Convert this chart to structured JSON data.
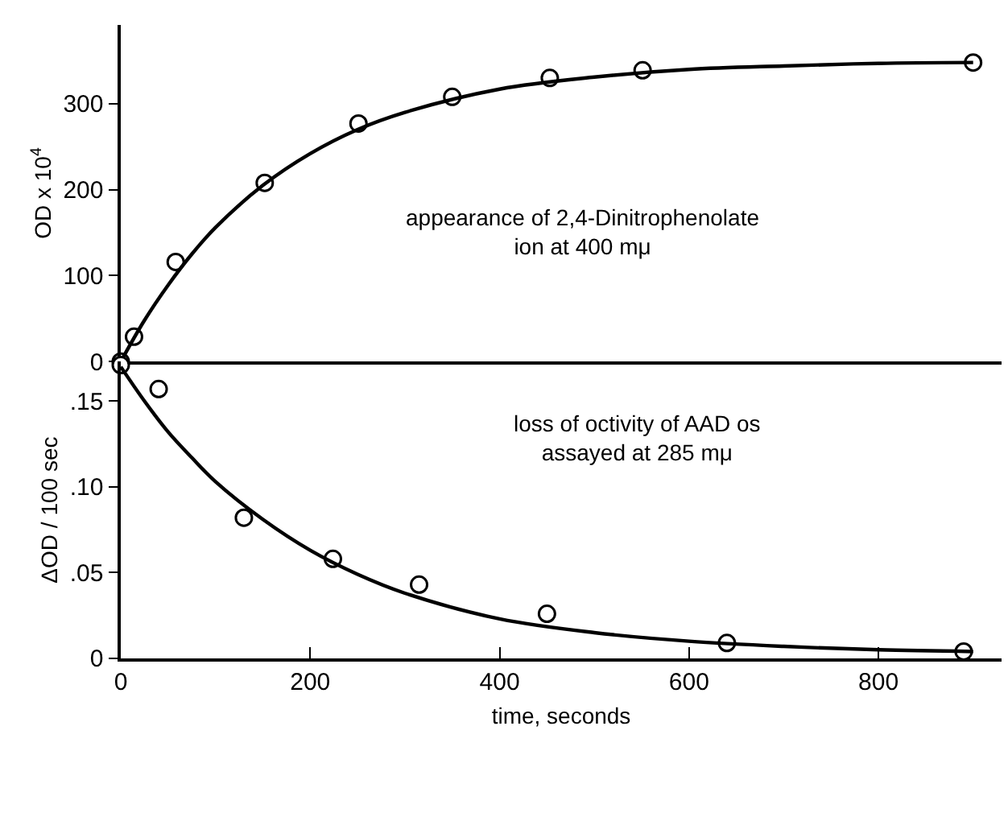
{
  "chart_data": [
    {
      "type": "scatter",
      "ylabel": "OD x 10$^{4}$",
      "xlim": [
        0,
        930
      ],
      "ylim": [
        0,
        392
      ],
      "yticks": [
        0,
        100,
        200,
        300
      ],
      "tick_labels": "y",
      "grid": false,
      "annotations": [
        "appearance of 2,4-Dinitrophenolate\nion at 400 mμ"
      ],
      "x": [
        0,
        14,
        58,
        152,
        251,
        350,
        453,
        551,
        900
      ],
      "series": [
        {
          "color": "#000000",
          "marker": "circle",
          "values": [
            0,
            29,
            116,
            208,
            277,
            308,
            330,
            339,
            348
          ]
        },
        {
          "type": "line",
          "color": "#000000",
          "marker": "none",
          "line_style": "solid",
          "x": [
            0,
            25,
            50,
            75,
            100,
            150,
            200,
            250,
            300,
            400,
            500,
            600,
            700,
            800,
            900
          ],
          "values": [
            0,
            48,
            89,
            125,
            156,
            205,
            242,
            270,
            290,
            317,
            331,
            340,
            344,
            347,
            348
          ]
        }
      ]
    },
    {
      "type": "scatter",
      "ylabel": "ΔOD / 100 sec",
      "xlabel": "time, seconds",
      "xlim": [
        0,
        930
      ],
      "ylim": [
        0,
        0.173
      ],
      "xticks": [
        0,
        200,
        400,
        600,
        800
      ],
      "yticks": [
        0,
        {
          "value": 0.05,
          "label": ".05"
        },
        {
          "value": 0.1,
          "label": ".10"
        },
        {
          "value": 0.15,
          "label": ".15"
        }
      ],
      "grid": false,
      "annotations": [
        "loss of octivity of AAD os\nassayed at 285 mμ"
      ],
      "x": [
        0,
        40,
        130,
        224,
        315,
        450,
        640,
        890
      ],
      "series": [
        {
          "color": "#000000",
          "marker": "circle",
          "values": [
            0.171,
            0.157,
            0.082,
            0.058,
            0.043,
            0.026,
            0.009,
            0.004
          ]
        },
        {
          "type": "line",
          "color": "#000000",
          "marker": "none",
          "line_style": "solid",
          "x": [
            0,
            25,
            50,
            75,
            100,
            150,
            200,
            250,
            300,
            400,
            500,
            600,
            700,
            800,
            900
          ],
          "values": [
            0.17,
            0.15,
            0.132,
            0.117,
            0.103,
            0.081,
            0.063,
            0.049,
            0.038,
            0.023,
            0.015,
            0.01,
            0.007,
            0.005,
            0.004
          ]
        }
      ]
    }
  ]
}
